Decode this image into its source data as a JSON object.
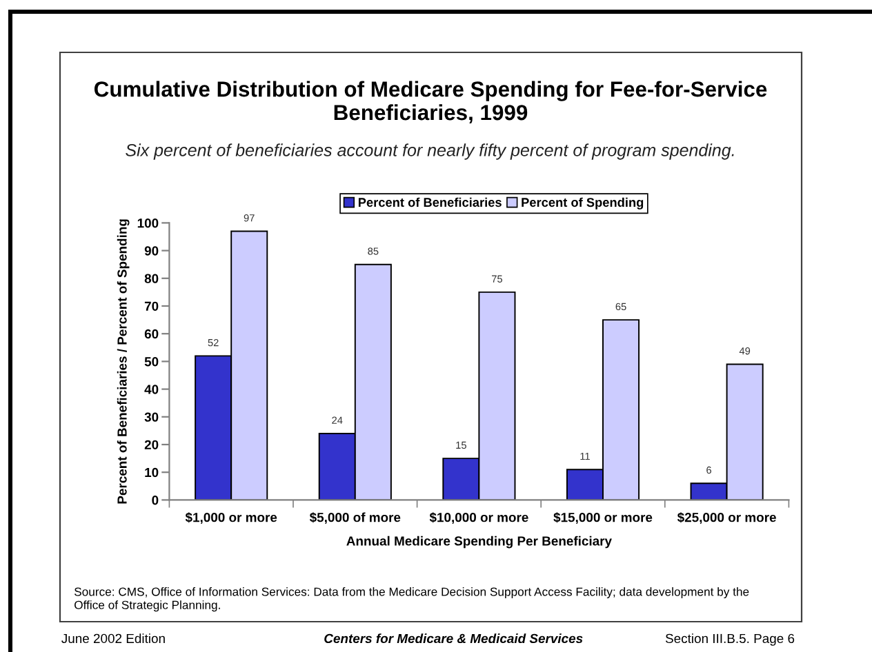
{
  "chart_data": {
    "type": "bar",
    "title": "Cumulative Distribution of Medicare Spending for Fee-for-Service Beneficiaries, 1999",
    "subtitle": "Six percent of beneficiaries account for nearly fifty percent of program spending.",
    "xlabel": "Annual Medicare Spending Per Beneficiary",
    "ylabel": "Percent of Beneficiaries / Percent of Spending",
    "categories": [
      "$1,000 or more",
      "$5,000 of more",
      "$10,000 or more",
      "$15,000 or more",
      "$25,000 or more"
    ],
    "series": [
      {
        "name": "Percent of Beneficiaries",
        "color": "#3333cc",
        "values": [
          52,
          24,
          15,
          11,
          6
        ]
      },
      {
        "name": "Percent of Spending",
        "color": "#ccccff",
        "values": [
          97,
          85,
          75,
          65,
          49
        ]
      }
    ],
    "ylim": [
      0,
      100
    ],
    "yticks": [
      0,
      10,
      20,
      30,
      40,
      50,
      60,
      70,
      80,
      90,
      100
    ],
    "data_labels": true,
    "legend": "top",
    "annotations": [
      "Source: CMS, Office of Information Services: Data from the Medicare Decision Support Access Facility; data development by the Office of Strategic Planning.",
      "June 2002 Edition",
      "Centers for Medicare & Medicaid Services",
      "Section III.B.5. Page 6"
    ]
  }
}
